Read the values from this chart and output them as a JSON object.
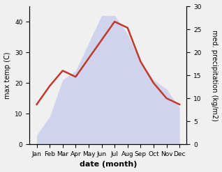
{
  "months": [
    "Jan",
    "Feb",
    "Mar",
    "Apr",
    "May",
    "Jun",
    "Jul",
    "Aug",
    "Sep",
    "Oct",
    "Nov",
    "Dec"
  ],
  "temp_max": [
    13,
    19,
    24,
    22,
    28,
    34,
    40,
    38,
    27,
    20,
    15,
    13
  ],
  "precipitation": [
    2,
    6,
    14,
    16,
    22,
    28,
    28,
    24,
    18,
    14,
    12,
    8
  ],
  "temp_color": "#c0392b",
  "precip_fill_color": "#b0b8e8",
  "ylabel_left": "max temp (C)",
  "ylabel_right": "med. precipitation (kg/m2)",
  "xlabel": "date (month)",
  "ylim_left": [
    0,
    45
  ],
  "ylim_right": [
    0,
    30
  ],
  "yticks_left": [
    0,
    10,
    20,
    30,
    40
  ],
  "yticks_right": [
    0,
    5,
    10,
    15,
    20,
    25,
    30
  ],
  "figsize": [
    3.18,
    2.47
  ],
  "dpi": 100,
  "temp_linewidth": 1.8,
  "precip_alpha": 0.5,
  "bg_color": "#f0f0f0",
  "tick_fontsize": 6.5,
  "label_fontsize": 7,
  "xlabel_fontsize": 8
}
